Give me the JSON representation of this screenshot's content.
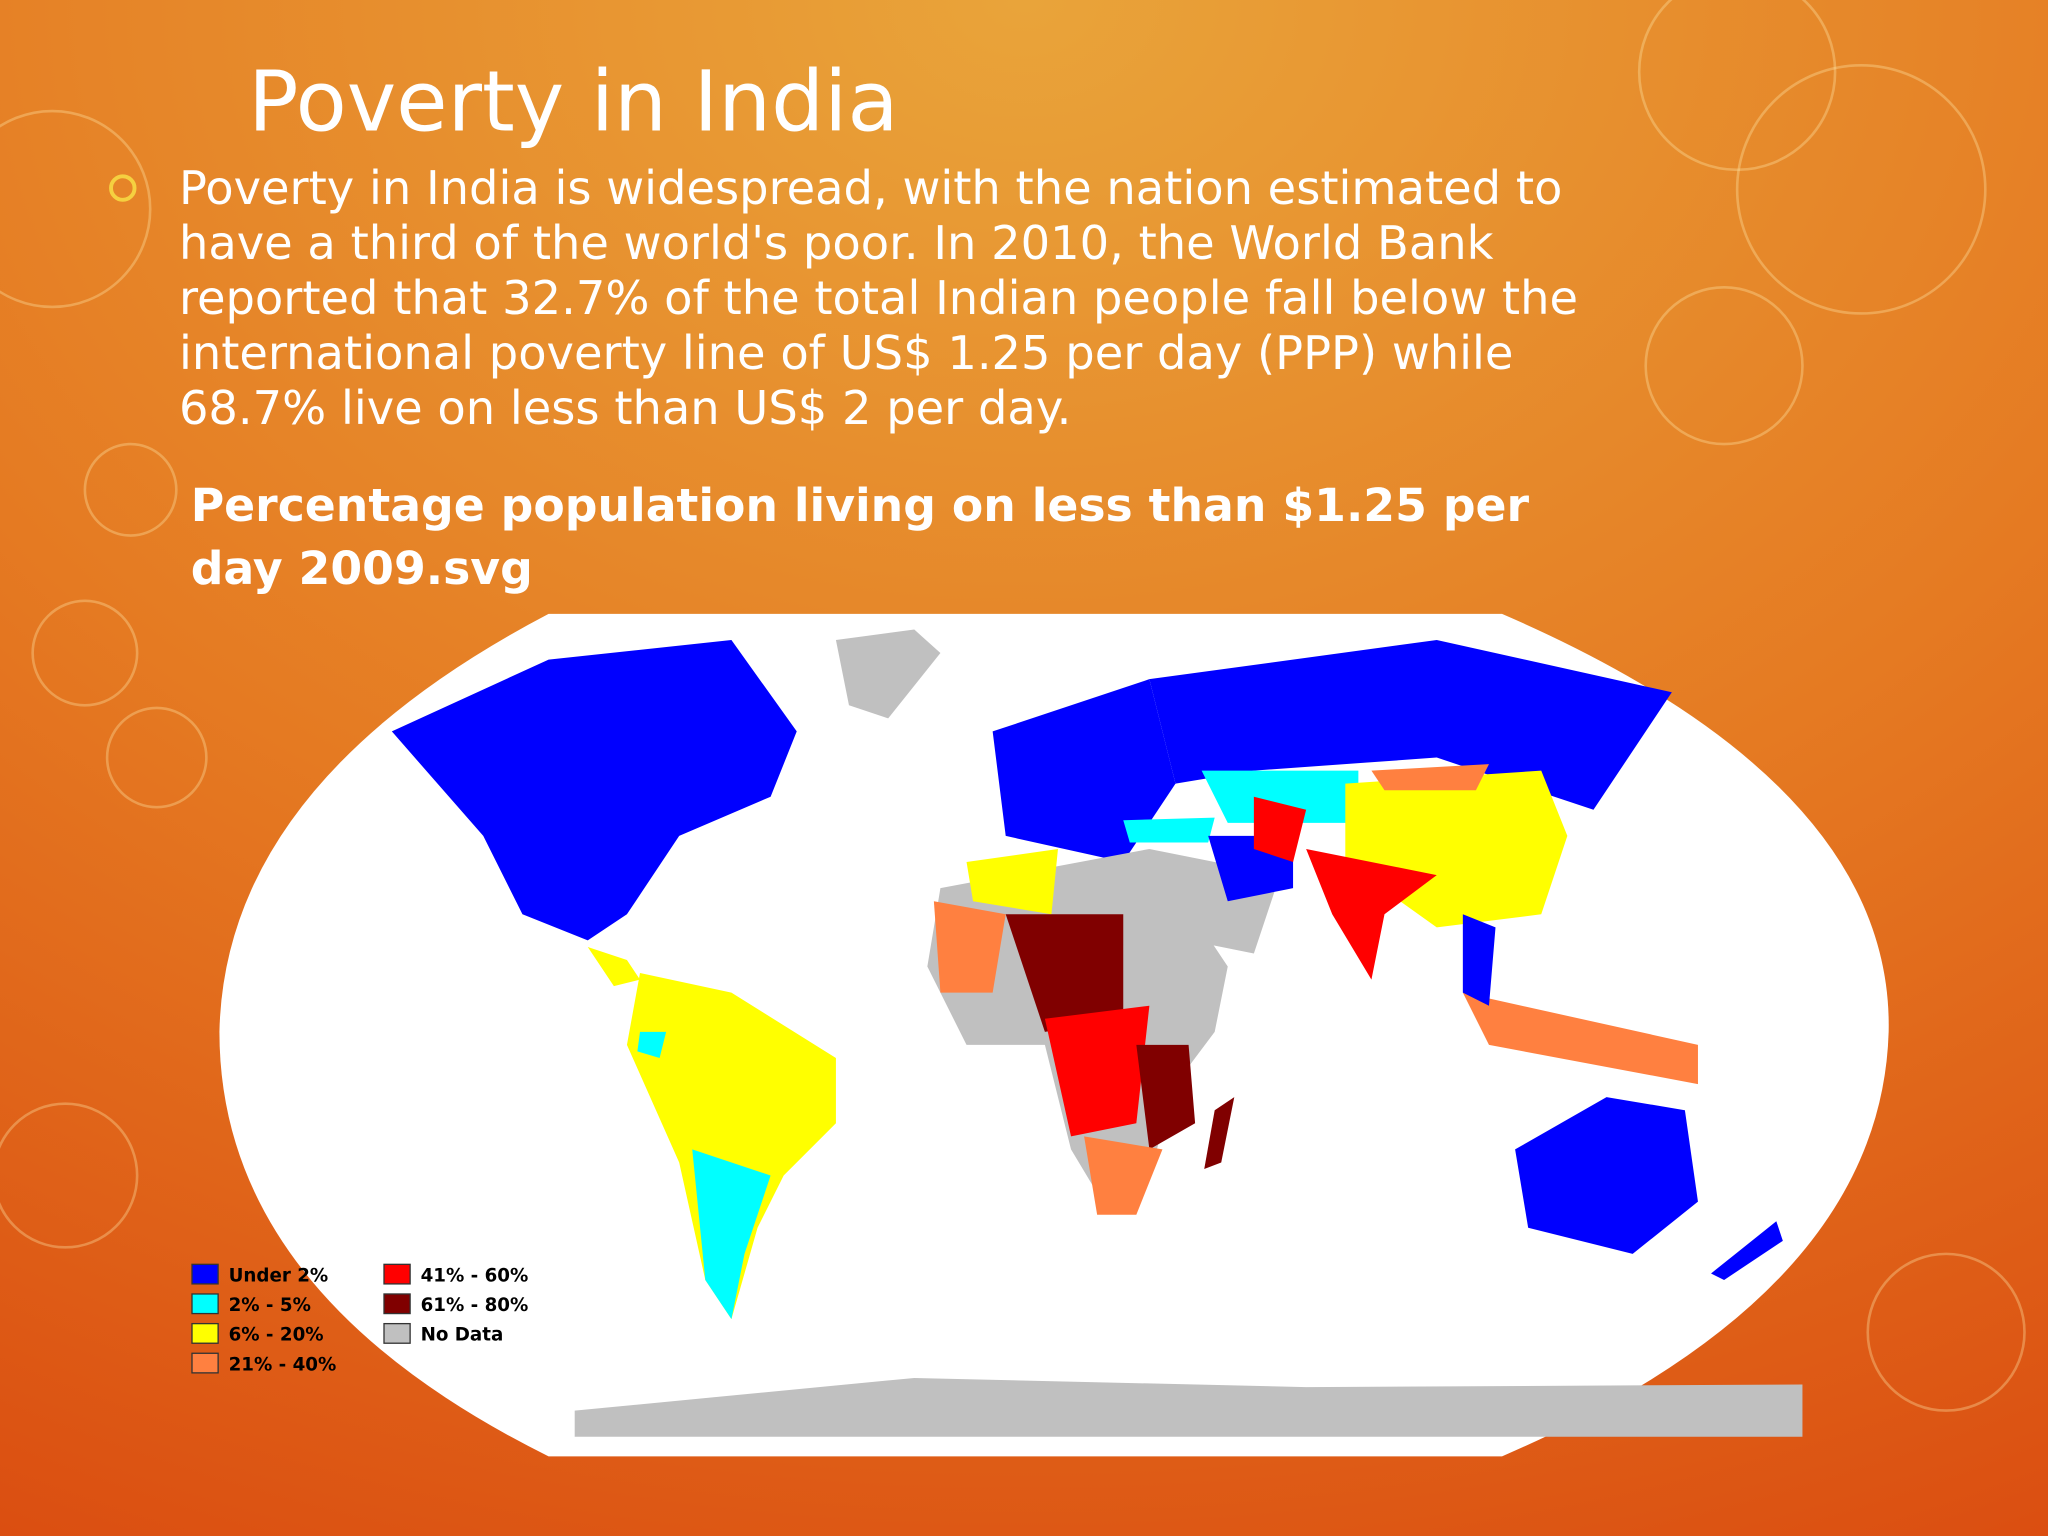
{
  "slide": {
    "title": "Poverty in India",
    "bullet_lines": [
      "Poverty in India is widespread, with the nation estimated to",
      "have a third of the world's poor. In 2010, the World Bank",
      "reported that 32.7% of the total Indian people fall below the",
      "international poverty line of US$ 1.25 per day (PPP) while",
      "68.7% live on less than US$ 2 per day."
    ],
    "caption_lines": [
      "Percentage population living on less than $1.25 per",
      "day 2009.svg"
    ],
    "legend": [
      {
        "label": "Under 2%",
        "color": "#0000ff"
      },
      {
        "label": "2% - 5%",
        "color": "#00ffff"
      },
      {
        "label": "6% - 20%",
        "color": "#ffff00"
      },
      {
        "label": "21% - 40%",
        "color": "#ff8040"
      },
      {
        "label": "41% - 60%",
        "color": "#ff0000"
      },
      {
        "label": "61% - 80%",
        "color": "#800000"
      },
      {
        "label": "No Data",
        "color": "#c0c0c0"
      }
    ]
  }
}
